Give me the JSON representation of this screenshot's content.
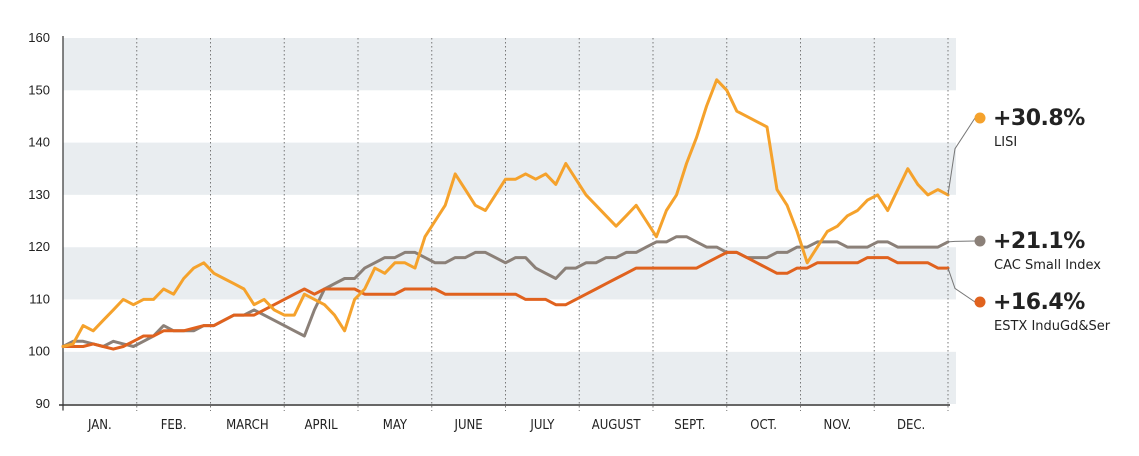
{
  "chart_data": {
    "type": "line",
    "yticks": [
      90,
      100,
      110,
      120,
      130,
      140,
      150,
      160
    ],
    "ylim": [
      90,
      160
    ],
    "months": [
      "JAN.",
      "FEB.",
      "MARCH",
      "APRIL",
      "MAY",
      "JUNE",
      "JULY",
      "AUGUST",
      "SEPT.",
      "OCT.",
      "NOV.",
      "DEC."
    ],
    "grid": "alternating horizontal bands, dotted vertical month separators",
    "legend_placement": "right",
    "series": [
      {
        "name": "LISI",
        "change": "+30.8%",
        "color": "#f5a22c",
        "values": [
          101,
          101.5,
          105,
          104,
          106,
          108,
          110,
          109,
          110,
          110,
          112,
          111,
          114,
          116,
          117,
          115,
          114,
          113,
          112,
          109,
          110,
          108,
          107,
          107,
          111,
          110,
          109,
          107,
          104,
          110,
          112,
          116,
          115,
          117,
          117,
          116,
          122,
          125,
          128,
          134,
          131,
          128,
          127,
          130,
          133,
          133,
          134,
          133,
          134,
          132,
          136,
          133,
          130,
          128,
          126,
          124,
          126,
          128,
          125,
          122,
          127,
          130,
          136,
          141,
          147,
          152,
          150,
          146,
          145,
          144,
          143,
          131,
          128,
          123,
          117,
          120,
          123,
          124,
          126,
          127,
          129,
          130,
          127,
          131,
          135,
          132,
          130,
          131,
          130
        ]
      },
      {
        "name": "CAC Small Index",
        "change": "+21.1%",
        "color": "#8b8078",
        "values": [
          101,
          102,
          102,
          101.5,
          101,
          102,
          101.5,
          101,
          102,
          103,
          105,
          104,
          104,
          104,
          105,
          105,
          106,
          107,
          107,
          108,
          107,
          106,
          105,
          104,
          103,
          108,
          112,
          113,
          114,
          114,
          116,
          117,
          118,
          118,
          119,
          119,
          118,
          117,
          117,
          118,
          118,
          119,
          119,
          118,
          117,
          118,
          118,
          116,
          115,
          114,
          116,
          116,
          117,
          117,
          118,
          118,
          119,
          119,
          120,
          121,
          121,
          122,
          122,
          121,
          120,
          120,
          119,
          119,
          118,
          118,
          118,
          119,
          119,
          120,
          120,
          121,
          121,
          121,
          120,
          120,
          120,
          121,
          121,
          120,
          120,
          120,
          120,
          120,
          121
        ]
      },
      {
        "name": "ESTX InduGd&Ser",
        "change": "+16.4%",
        "color": "#e0621e",
        "values": [
          101,
          101,
          101,
          101.5,
          101,
          100.5,
          101,
          102,
          103,
          103,
          104,
          104,
          104,
          104.5,
          105,
          105,
          106,
          107,
          107,
          107,
          108,
          109,
          110,
          111,
          112,
          111,
          112,
          112,
          112,
          112,
          111,
          111,
          111,
          111,
          112,
          112,
          112,
          112,
          111,
          111,
          111,
          111,
          111,
          111,
          111,
          111,
          110,
          110,
          110,
          109,
          109,
          110,
          111,
          112,
          113,
          114,
          115,
          116,
          116,
          116,
          116,
          116,
          116,
          116,
          117,
          118,
          119,
          119,
          118,
          117,
          116,
          115,
          115,
          116,
          116,
          117,
          117,
          117,
          117,
          117,
          118,
          118,
          118,
          117,
          117,
          117,
          117,
          116,
          116
        ]
      }
    ]
  }
}
